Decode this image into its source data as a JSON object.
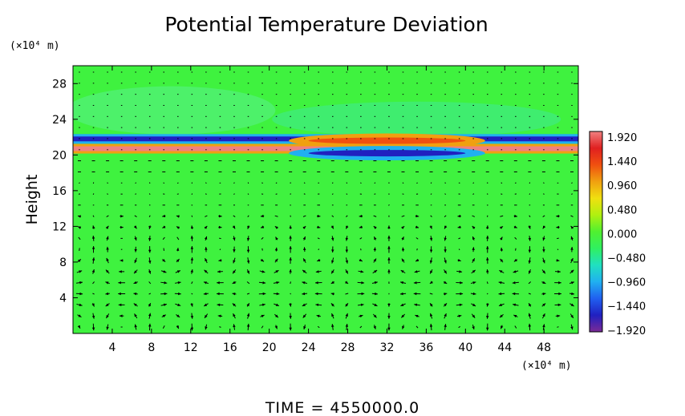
{
  "chart_data": {
    "type": "heatmap",
    "title": "Potential Temperature Deviation",
    "xlabel": "",
    "ylabel": "Height",
    "x_unit": "(×10⁴ m)",
    "y_unit": "(×10⁴ m)",
    "xlim": [
      0,
      51.5
    ],
    "ylim": [
      0,
      30
    ],
    "x_ticks": [
      4,
      8,
      12,
      16,
      20,
      24,
      28,
      32,
      36,
      40,
      44,
      48
    ],
    "x_tick_labels": [
      "4",
      "8",
      "12",
      "16",
      "20",
      "24",
      "28",
      "32",
      "36",
      "40",
      "44",
      "48"
    ],
    "y_ticks": [
      4,
      8,
      12,
      16,
      20,
      24,
      28
    ],
    "y_tick_labels": [
      "4",
      "8",
      "12",
      "16",
      "20",
      "24",
      "28"
    ],
    "colorbar": {
      "range": [
        -1.92,
        1.92
      ],
      "tick_labels": [
        "1.920",
        "1.440",
        "0.960",
        "0.480",
        "0.000",
        "−0.480",
        "−0.960",
        "−1.440",
        "−1.920"
      ],
      "colors": [
        "#7b2a96",
        "#2020c0",
        "#2060f0",
        "#20b0f0",
        "#20e0c0",
        "#30f060",
        "#50f030",
        "#b0f010",
        "#f0e010",
        "#f0a010",
        "#f05010",
        "#e02020",
        "#f08080"
      ]
    },
    "background_color": "#3ff23f",
    "features": [
      {
        "kind": "layer",
        "x_range": [
          0,
          51.5
        ],
        "y_center": 20.7,
        "sign": "positive",
        "amplitude": 1.9
      },
      {
        "kind": "layer",
        "x_range": [
          0,
          51.5
        ],
        "y_center": 21.8,
        "sign": "negative",
        "amplitude": 1.6
      },
      {
        "kind": "bulge",
        "x_range": [
          22,
          42
        ],
        "y_center": 21.6,
        "sign": "positive",
        "amplitude": 1.4
      },
      {
        "kind": "bulge",
        "x_range": [
          22,
          42
        ],
        "y_center": 20.2,
        "sign": "negative",
        "amplitude": 1.5
      }
    ],
    "wind_vectors": {
      "description": "velocity arrows over domain",
      "cells_x": 36,
      "cells_y": 24
    },
    "footer": "TIME  =  4550000.0"
  },
  "labels": {
    "title": "Potential Temperature Deviation",
    "ylabel": "Height",
    "y_unit": "(×10⁴ m)",
    "x_unit": "(×10⁴ m)",
    "time": "TIME  =  4550000.0"
  }
}
